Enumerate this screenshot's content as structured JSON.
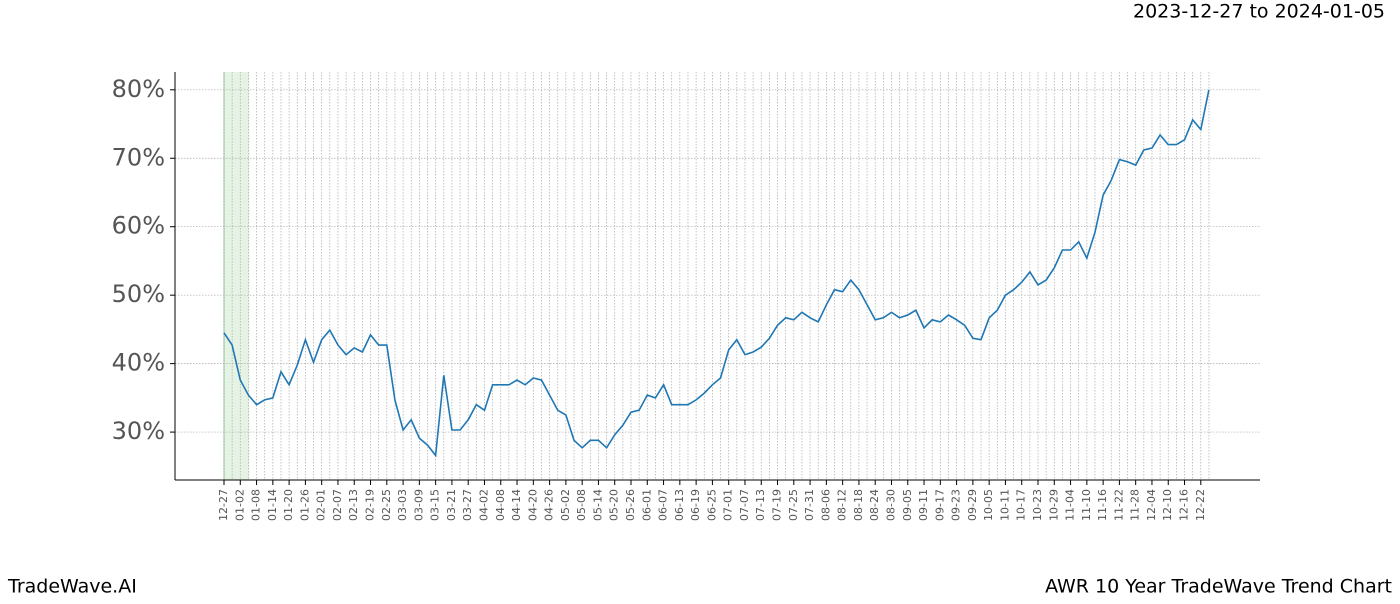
{
  "chart_data": {
    "type": "line",
    "title": "AWR 10 Year TradeWave Trend Chart",
    "subtitle": "2023-12-27 to 2024-01-05",
    "watermark": "TradeWave.AI",
    "categories": [
      "12-27",
      null,
      "01-02",
      null,
      "01-08",
      null,
      "01-14",
      null,
      "01-20",
      null,
      "01-26",
      null,
      "02-01",
      null,
      "02-07",
      null,
      "02-13",
      null,
      "02-19",
      null,
      "02-25",
      null,
      "03-03",
      null,
      "03-09",
      null,
      "03-15",
      null,
      "03-21",
      null,
      "03-27",
      null,
      "04-02",
      null,
      "04-08",
      null,
      "04-14",
      null,
      "04-20",
      null,
      "04-26",
      null,
      "05-02",
      null,
      "05-08",
      null,
      "05-14",
      null,
      "05-20",
      null,
      "05-26",
      null,
      "06-01",
      null,
      "06-07",
      null,
      "06-13",
      null,
      "06-19",
      null,
      "06-25",
      null,
      "07-01",
      null,
      "07-07",
      null,
      "07-13",
      null,
      "07-19",
      null,
      "07-25",
      null,
      "07-31",
      null,
      "08-06",
      null,
      "08-12",
      null,
      "08-18",
      null,
      "08-24",
      null,
      "08-30",
      null,
      "09-05",
      null,
      "09-11",
      null,
      "09-17",
      null,
      "09-23",
      null,
      "09-29",
      null,
      "10-05",
      null,
      "10-11",
      null,
      "10-17",
      null,
      "10-23",
      null,
      "10-29",
      null,
      "11-04",
      null,
      "11-10",
      null,
      "11-16",
      null,
      "11-22",
      null,
      "11-28",
      null,
      "12-04",
      null,
      "12-10",
      null,
      "12-16",
      null,
      "12-22",
      null
    ],
    "series": [
      {
        "color": "#1f77b4",
        "values": [
          44.5,
          42.7,
          37.6,
          35.4,
          34,
          34.7,
          35,
          38.8,
          36.9,
          39.8,
          43.5,
          40.2,
          43.5,
          44.9,
          42.7,
          41.3,
          42.3,
          41.7,
          44.2,
          42.7,
          42.7,
          34.7,
          30.3,
          31.8,
          29.1,
          28.1,
          26.6,
          38.3,
          30.3,
          30.3,
          31.8,
          34,
          33.2,
          36.9,
          36.9,
          36.9,
          37.6,
          36.9,
          37.9,
          37.6,
          35.4,
          33.2,
          32.5,
          28.8,
          27.7,
          28.8,
          28.8,
          27.7,
          29.6,
          31,
          32.9,
          33.2,
          35.4,
          35,
          36.9,
          34,
          34,
          34,
          34.7,
          35.7,
          36.9,
          37.9,
          42,
          43.5,
          41.3,
          41.7,
          42.4,
          43.7,
          45.6,
          46.7,
          46.4,
          47.5,
          46.7,
          46.1,
          48.6,
          50.8,
          50.5,
          52.2,
          50.8,
          48.6,
          46.4,
          46.7,
          47.5,
          46.7,
          47.1,
          47.8,
          45.2,
          46.4,
          46.1,
          47.1,
          46.4,
          45.6,
          43.7,
          43.5,
          46.7,
          47.8,
          50,
          50.8,
          51.9,
          53.4,
          51.5,
          52.2,
          54,
          56.6,
          56.6,
          57.8,
          55.4,
          59.2,
          64.6,
          66.8,
          69.8,
          69.5,
          69,
          71.2,
          71.5,
          73.4,
          72,
          72,
          72.7,
          75.6,
          74.2,
          80
        ]
      }
    ],
    "ylim": [
      23,
      82.6
    ],
    "yticks": [
      {
        "value": 30,
        "label": "30%"
      },
      {
        "value": 40,
        "label": "40%"
      },
      {
        "value": 50,
        "label": "50%"
      },
      {
        "value": 60,
        "label": "60%"
      },
      {
        "value": 70,
        "label": "70%"
      },
      {
        "value": 80,
        "label": "80%"
      }
    ],
    "grid": true
  }
}
